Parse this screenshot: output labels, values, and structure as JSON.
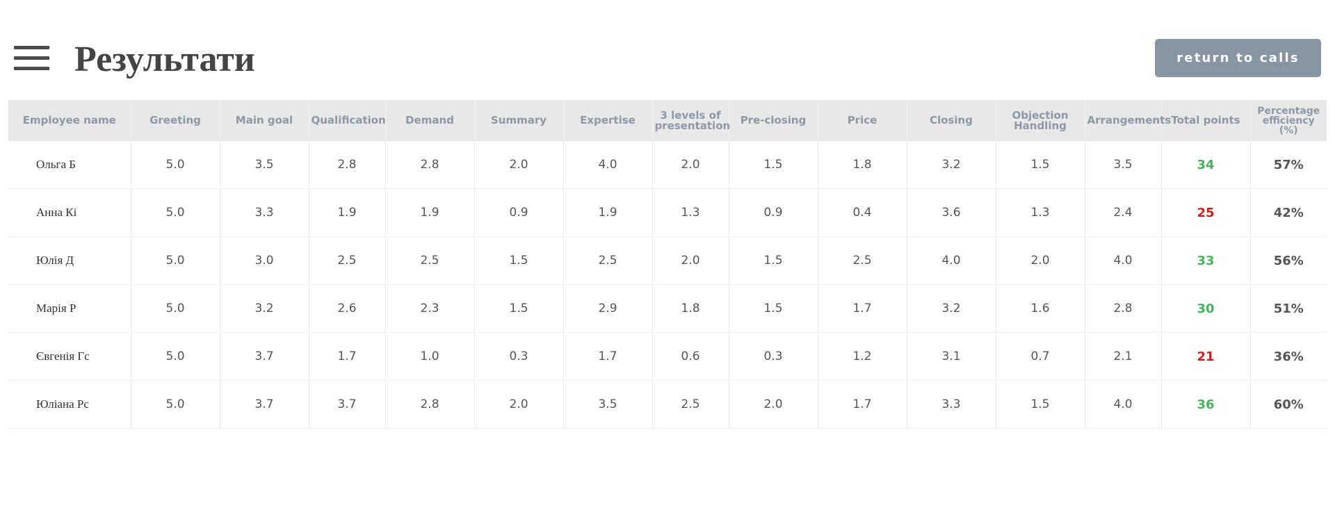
{
  "header": {
    "title": "Результати",
    "return_label": "return to calls"
  },
  "colors": {
    "header_bg": "#e8e8e8",
    "header_text": "#8d98a6",
    "button_bg": "#8896a4",
    "points_good": "#45b35c",
    "points_bad": "#d61a1a"
  },
  "table": {
    "columns": [
      "Employee name",
      "Greeting",
      "Main goal",
      "Qualification",
      "Demand",
      "Summary",
      "Expertise",
      "3 levels of presentation",
      "Pre-closing",
      "Price",
      "Closing",
      "Objection Handling",
      "Arrangements",
      "Total points",
      "Percentage efficiency (%)"
    ],
    "rows": [
      {
        "name": "Ольга Б",
        "scores": [
          "5.0",
          "3.5",
          "2.8",
          "2.8",
          "2.0",
          "4.0",
          "2.0",
          "1.5",
          "1.8",
          "3.2",
          "1.5",
          "3.5"
        ],
        "total": "34",
        "total_status": "good",
        "efficiency": "57%"
      },
      {
        "name": "Анна Кі",
        "scores": [
          "5.0",
          "3.3",
          "1.9",
          "1.9",
          "0.9",
          "1.9",
          "1.3",
          "0.9",
          "0.4",
          "3.6",
          "1.3",
          "2.4"
        ],
        "total": "25",
        "total_status": "bad",
        "efficiency": "42%"
      },
      {
        "name": "Юлія Д",
        "scores": [
          "5.0",
          "3.0",
          "2.5",
          "2.5",
          "1.5",
          "2.5",
          "2.0",
          "1.5",
          "2.5",
          "4.0",
          "2.0",
          "4.0"
        ],
        "total": "33",
        "total_status": "good",
        "efficiency": "56%"
      },
      {
        "name": "Марія Р",
        "scores": [
          "5.0",
          "3.2",
          "2.6",
          "2.3",
          "1.5",
          "2.9",
          "1.8",
          "1.5",
          "1.7",
          "3.2",
          "1.6",
          "2.8"
        ],
        "total": "30",
        "total_status": "good",
        "efficiency": "51%"
      },
      {
        "name": "Євгенія Гс",
        "scores": [
          "5.0",
          "3.7",
          "1.7",
          "1.0",
          "0.3",
          "1.7",
          "0.6",
          "0.3",
          "1.2",
          "3.1",
          "0.7",
          "2.1"
        ],
        "total": "21",
        "total_status": "bad",
        "efficiency": "36%"
      },
      {
        "name": "Юліана Рс",
        "scores": [
          "5.0",
          "3.7",
          "3.7",
          "2.8",
          "2.0",
          "3.5",
          "2.5",
          "2.0",
          "1.7",
          "3.3",
          "1.5",
          "4.0"
        ],
        "total": "36",
        "total_status": "good",
        "efficiency": "60%"
      }
    ]
  }
}
